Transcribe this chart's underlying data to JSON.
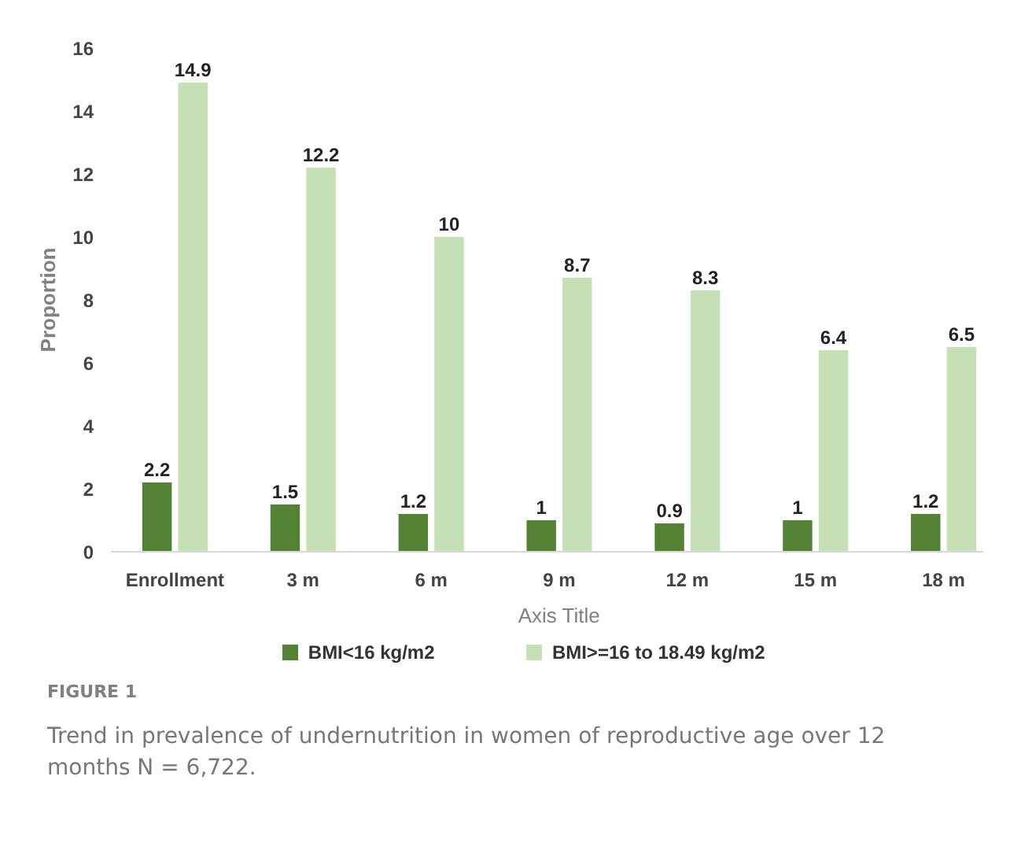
{
  "chart_data": {
    "type": "bar",
    "xlabel": "Axis Title",
    "ylabel": "Proportion",
    "categories": [
      "Enrollment",
      "3 m",
      "6 m",
      "9 m",
      "12 m",
      "15 m",
      "18 m"
    ],
    "series": [
      {
        "name": "BMI<16 kg/m2",
        "color": "#548235",
        "values": [
          2.2,
          1.5,
          1.2,
          1,
          0.9,
          1,
          1.2
        ]
      },
      {
        "name": "BMI>=16 to 18.49 kg/m2",
        "color": "#c5e0b4",
        "values": [
          14.9,
          12.2,
          10,
          8.7,
          8.3,
          6.4,
          6.5
        ]
      }
    ],
    "ylim": [
      0,
      16
    ],
    "yticks": [
      0,
      2,
      4,
      6,
      8,
      10,
      12,
      14,
      16
    ],
    "grid": false,
    "legend": "bottom",
    "data_labels": true,
    "annotations": [
      "FIGURE 1",
      "Trend in prevalence of undernutrition in women of reproductive age over 12 months N = 6,722."
    ]
  }
}
